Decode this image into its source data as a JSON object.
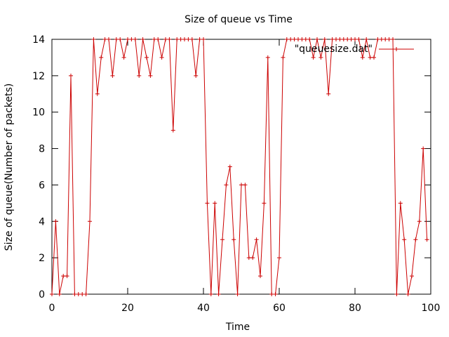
{
  "chart_data": {
    "type": "line",
    "title": "Size of queue vs Time",
    "xlabel": "Time",
    "ylabel": "Size of queue(Number of packets)",
    "xlim": [
      0,
      100
    ],
    "ylim": [
      0,
      14
    ],
    "xticks": [
      "0",
      "20",
      "40",
      "60",
      "80",
      "100"
    ],
    "yticks": [
      "0",
      "2",
      "4",
      "6",
      "8",
      "10",
      "12",
      "14"
    ],
    "grid": false,
    "legend": "top-right",
    "color": "#cc0000",
    "series": [
      {
        "name": "\"queuesize.dat\"",
        "x": [
          0,
          1,
          2,
          3,
          4,
          5,
          6,
          7,
          8,
          9,
          10,
          11,
          12,
          13,
          14,
          15,
          16,
          17,
          18,
          19,
          20,
          21,
          22,
          23,
          24,
          25,
          26,
          27,
          28,
          29,
          30,
          31,
          32,
          33,
          34,
          35,
          36,
          37,
          38,
          39,
          40,
          41,
          42,
          43,
          44,
          45,
          46,
          47,
          48,
          49,
          50,
          51,
          52,
          53,
          54,
          55,
          56,
          57,
          58,
          59,
          60,
          61,
          62,
          63,
          64,
          65,
          66,
          67,
          68,
          69,
          70,
          71,
          72,
          73,
          74,
          75,
          76,
          77,
          78,
          79,
          80,
          81,
          82,
          83,
          84,
          85,
          86,
          87,
          88,
          89,
          90,
          91,
          92,
          93,
          94,
          95,
          96,
          97,
          98,
          99
        ],
        "y": [
          0,
          4,
          0,
          1,
          1,
          12,
          0,
          0,
          0,
          0,
          4,
          14,
          11,
          13,
          14,
          14,
          12,
          14,
          14,
          13,
          14,
          14,
          14,
          12,
          14,
          13,
          12,
          14,
          14,
          13,
          14,
          14,
          9,
          14,
          14,
          14,
          14,
          14,
          12,
          14,
          14,
          5,
          0,
          5,
          0,
          3,
          6,
          7,
          3,
          0,
          6,
          6,
          2,
          2,
          3,
          1,
          5,
          13,
          0,
          0,
          2,
          13,
          14,
          14,
          14,
          14,
          14,
          14,
          14,
          13,
          14,
          13,
          14,
          11,
          14,
          14,
          14,
          14,
          14,
          14,
          14,
          14,
          13,
          14,
          13,
          13,
          14,
          14,
          14,
          14,
          14,
          0,
          5,
          3,
          0,
          1,
          3,
          4,
          8,
          3
        ]
      }
    ]
  }
}
